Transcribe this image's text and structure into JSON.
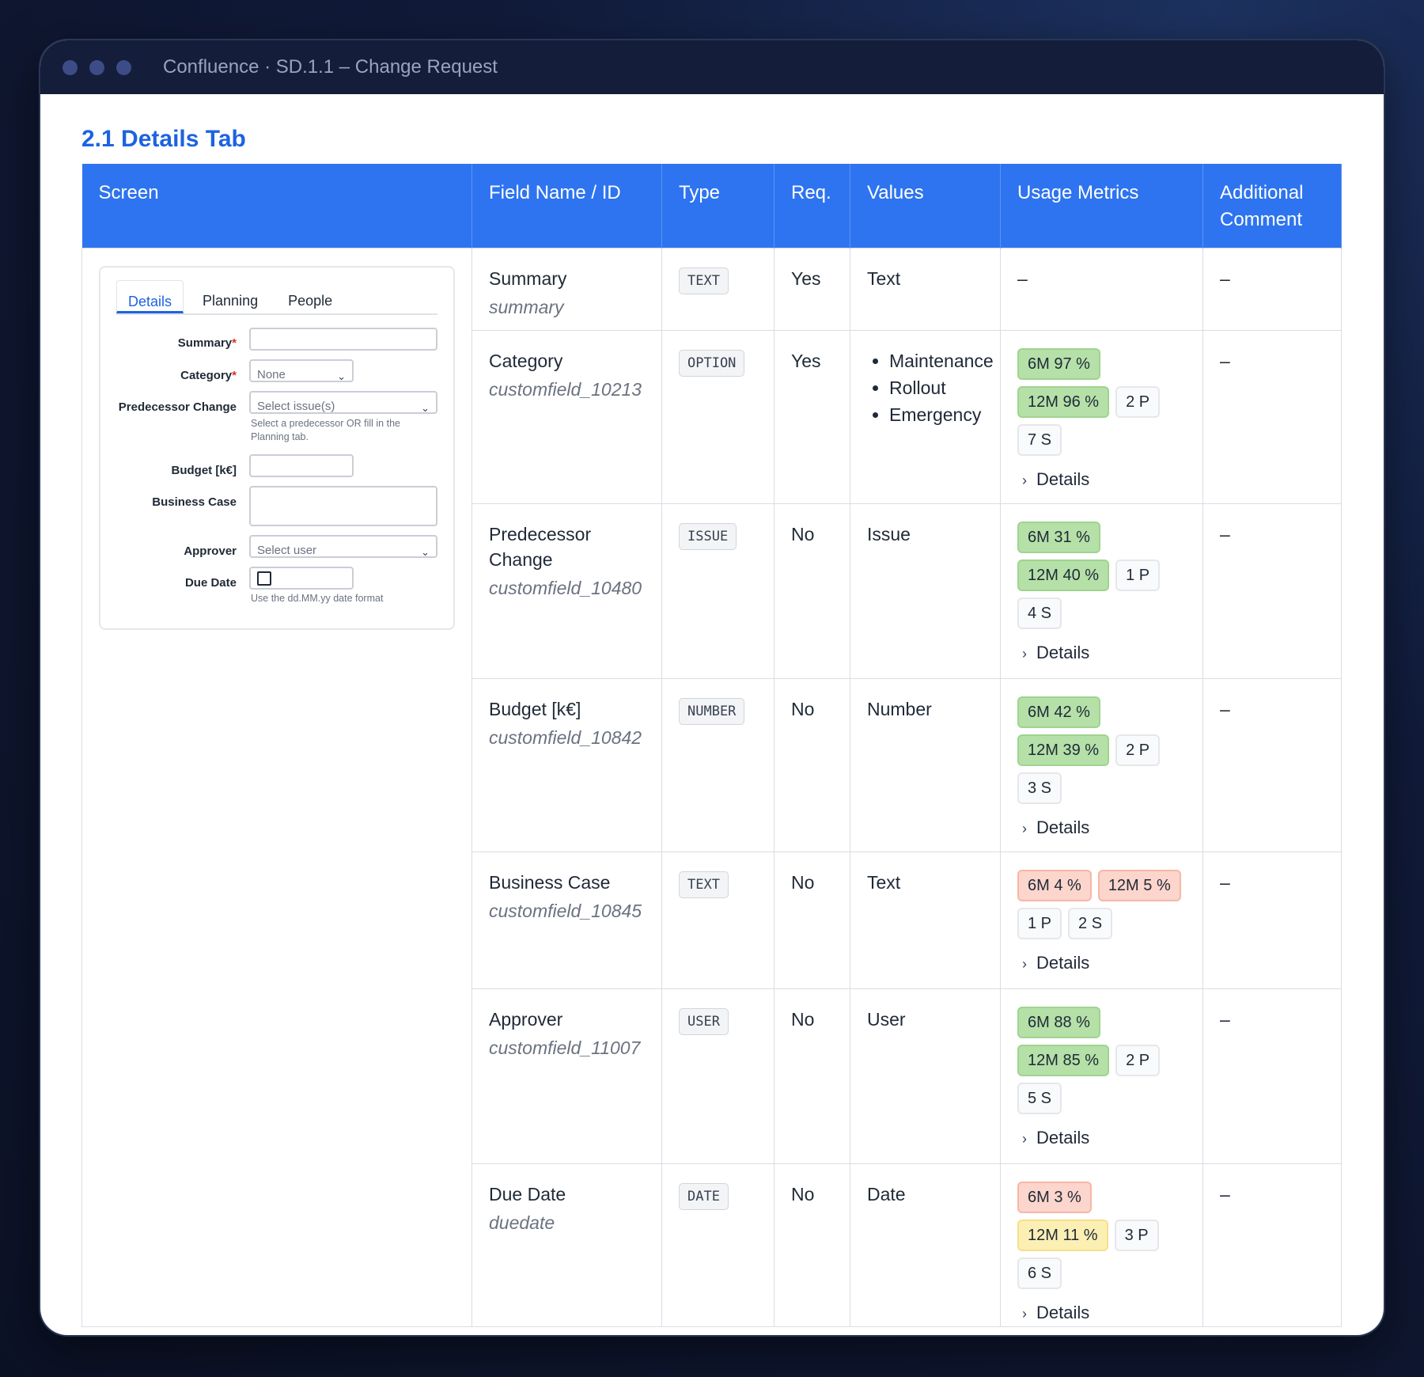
{
  "window": {
    "title": "Confluence · SD.1.1 – Change Request"
  },
  "section_heading": "2.1 Details Tab",
  "columns": [
    "Screen",
    "Field Name / ID",
    "Type",
    "Req.",
    "Values",
    "Usage Metrics",
    "Additional Comment"
  ],
  "details_label": "Details",
  "form": {
    "tabs": [
      "Details",
      "Planning",
      "People"
    ],
    "fields": {
      "summary": {
        "label": "Summary",
        "required_mark": "*"
      },
      "category": {
        "label": "Category",
        "required_mark": "*",
        "value": "None"
      },
      "predecessor": {
        "label": "Predecessor Change",
        "placeholder": "Select issue(s)",
        "help": "Select a predecessor OR fill in the Planning tab."
      },
      "budget": {
        "label": "Budget [k€]"
      },
      "business_case": {
        "label": "Business Case"
      },
      "approver": {
        "label": "Approver",
        "placeholder": "Select user"
      },
      "due_date": {
        "label": "Due Date",
        "help": "Use the dd.MM.yy date format"
      }
    }
  },
  "rows": [
    {
      "name": "Summary",
      "id": "summary",
      "type": "TEXT",
      "req": "Yes",
      "values": [
        "Text"
      ],
      "values_list": false,
      "metrics": [],
      "metrics_empty": "–",
      "comment": "–"
    },
    {
      "name": "Category",
      "id": "customfield_10213",
      "type": "OPTION",
      "req": "Yes",
      "values": [
        "Maintenance",
        "Rollout",
        "Emergency"
      ],
      "values_list": true,
      "metrics": [
        {
          "text": "6M 97 %",
          "color": "green"
        },
        {
          "text": "12M 96 %",
          "color": "green"
        },
        {
          "text": "2 P",
          "color": "gray"
        },
        {
          "text": "7 S",
          "color": "gray"
        }
      ],
      "comment": "–"
    },
    {
      "name": "Predecessor Change",
      "id": "customfield_10480",
      "type": "ISSUE",
      "req": "No",
      "values": [
        "Issue"
      ],
      "values_list": false,
      "metrics": [
        {
          "text": "6M 31 %",
          "color": "green"
        },
        {
          "text": "12M 40 %",
          "color": "green"
        },
        {
          "text": "1 P",
          "color": "gray"
        },
        {
          "text": "4 S",
          "color": "gray"
        }
      ],
      "comment": "–"
    },
    {
      "name": "Budget [k€]",
      "id": "customfield_10842",
      "type": "NUMBER",
      "req": "No",
      "values": [
        "Number"
      ],
      "values_list": false,
      "metrics": [
        {
          "text": "6M 42 %",
          "color": "green"
        },
        {
          "text": "12M 39 %",
          "color": "green"
        },
        {
          "text": "2 P",
          "color": "gray"
        },
        {
          "text": "3 S",
          "color": "gray"
        }
      ],
      "comment": "–"
    },
    {
      "name": "Business Case",
      "id": "customfield_10845",
      "type": "TEXT",
      "req": "No",
      "values": [
        "Text"
      ],
      "values_list": false,
      "metrics": [
        {
          "text": "6M 4 %",
          "color": "red"
        },
        {
          "text": "12M 5 %",
          "color": "red"
        },
        {
          "text": "1 P",
          "color": "gray"
        },
        {
          "text": "2 S",
          "color": "gray"
        }
      ],
      "comment": "–"
    },
    {
      "name": "Approver",
      "id": "customfield_11007",
      "type": "USER",
      "req": "No",
      "values": [
        "User"
      ],
      "values_list": false,
      "metrics": [
        {
          "text": "6M 88 %",
          "color": "green"
        },
        {
          "text": "12M 85 %",
          "color": "green"
        },
        {
          "text": "2 P",
          "color": "gray"
        },
        {
          "text": "5 S",
          "color": "gray"
        }
      ],
      "comment": "–"
    },
    {
      "name": "Due Date",
      "id": "duedate",
      "type": "DATE",
      "req": "No",
      "values": [
        "Date"
      ],
      "values_list": false,
      "metrics": [
        {
          "text": "6M 3 %",
          "color": "red"
        },
        {
          "text": "12M 11 %",
          "color": "yellow"
        },
        {
          "text": "3 P",
          "color": "gray"
        },
        {
          "text": "6 S",
          "color": "gray"
        }
      ],
      "comment": "–"
    }
  ]
}
